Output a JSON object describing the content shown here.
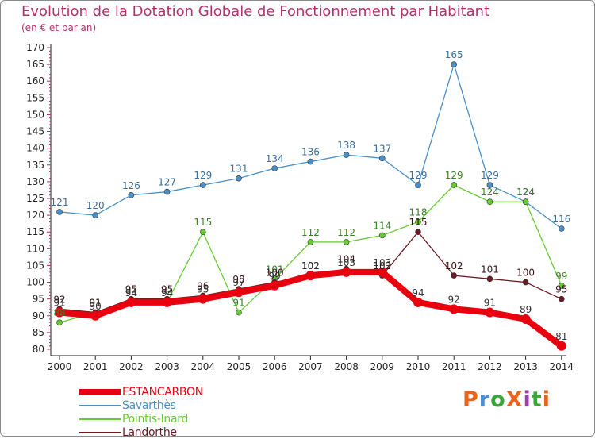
{
  "header": {
    "title": "Evolution de la Dotation Globale de Fonctionnement par Habitant",
    "subtitle": "(en € et par an)"
  },
  "logo": {
    "text": "ProXiti",
    "colors": [
      "#e8641c",
      "#4c8fd0",
      "#3aa63a",
      "#e8641c",
      "#9b3fb0",
      "#3aa63a",
      "#e8641c"
    ]
  },
  "chart_data": {
    "type": "line",
    "x": [
      2000,
      2001,
      2002,
      2003,
      2004,
      2005,
      2006,
      2007,
      2008,
      2009,
      2010,
      2011,
      2012,
      2013,
      2014
    ],
    "ylim": [
      80,
      170
    ],
    "yticks": [
      80,
      85,
      90,
      95,
      100,
      105,
      110,
      115,
      120,
      125,
      130,
      135,
      140,
      145,
      150,
      155,
      160,
      165,
      170
    ],
    "grid": false,
    "legend_position": "bottom-left",
    "series": [
      {
        "name": "ESTANCARBON",
        "color": "#e8000f",
        "values": [
          91,
          90,
          94,
          94,
          95,
          97,
          99,
          102,
          103,
          103,
          94,
          92,
          91,
          89,
          81
        ]
      },
      {
        "name": "Savarthès",
        "color": "#4a90c8",
        "values": [
          121,
          120,
          126,
          127,
          129,
          131,
          134,
          136,
          138,
          137,
          129,
          165,
          129,
          124,
          116
        ]
      },
      {
        "name": "Pointis-Inard",
        "color": "#66cc33",
        "values": [
          88,
          91,
          94,
          94,
          115,
          91,
          101,
          112,
          112,
          114,
          118,
          129,
          124,
          124,
          99
        ]
      },
      {
        "name": "Landorthe",
        "color": "#6b1c24",
        "values": [
          92,
          91,
          95,
          95,
          96,
          98,
          100,
          102,
          104,
          102,
          115,
          102,
          101,
          100,
          95
        ]
      }
    ]
  }
}
